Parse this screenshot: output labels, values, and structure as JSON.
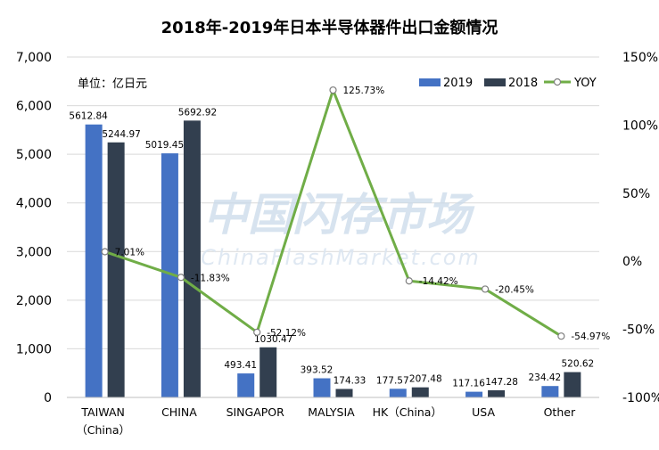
{
  "chart_data": {
    "type": "bar",
    "title": "2018年-2019年日本半导体器件出口金额情况",
    "unit_label": "单位：亿日元",
    "categories": [
      "TAIWAN\n（China）",
      "CHINA",
      "SINGAPOR",
      "MALYSIA",
      "HK（China）",
      "USA",
      "Other"
    ],
    "series": [
      {
        "name": "2019",
        "color": "#4472C4",
        "values": [
          5612.84,
          5019.45,
          493.41,
          393.52,
          177.57,
          117.16,
          234.42
        ]
      },
      {
        "name": "2018",
        "color": "#323F4F",
        "values": [
          5244.97,
          5692.92,
          1030.47,
          174.33,
          207.48,
          147.28,
          520.62
        ]
      }
    ],
    "line_series": {
      "name": "YOY",
      "color": "#70AD47",
      "values": [
        7.01,
        -11.83,
        -52.12,
        125.73,
        -14.42,
        -20.45,
        -54.97
      ],
      "labels": [
        "7.01%",
        "-11.83%",
        "-52.12%",
        "125.73%",
        "-14.42%",
        "-20.45%",
        "-54.97%"
      ]
    },
    "bar_labels": [
      [
        "5612.84",
        "5019.45",
        "493.41",
        "393.52",
        "177.57",
        "117.16",
        "234.42"
      ],
      [
        "5244.97",
        "5692.92",
        "1030.47",
        "174.33",
        "207.48",
        "147.28",
        "520.62"
      ]
    ],
    "ylim_left": [
      0,
      7000
    ],
    "left_ticks": [
      "0",
      "1,000",
      "2,000",
      "3,000",
      "4,000",
      "5,000",
      "6,000",
      "7,000"
    ],
    "ylim_right": [
      -100,
      150
    ],
    "right_ticks": [
      "-100%",
      "-50%",
      "0%",
      "50%",
      "100%",
      "150%"
    ],
    "legend_position": "top-right",
    "grid": true,
    "watermark": {
      "main": "中国闪存市场",
      "sub": "ChinaFlashMarket.com"
    }
  }
}
